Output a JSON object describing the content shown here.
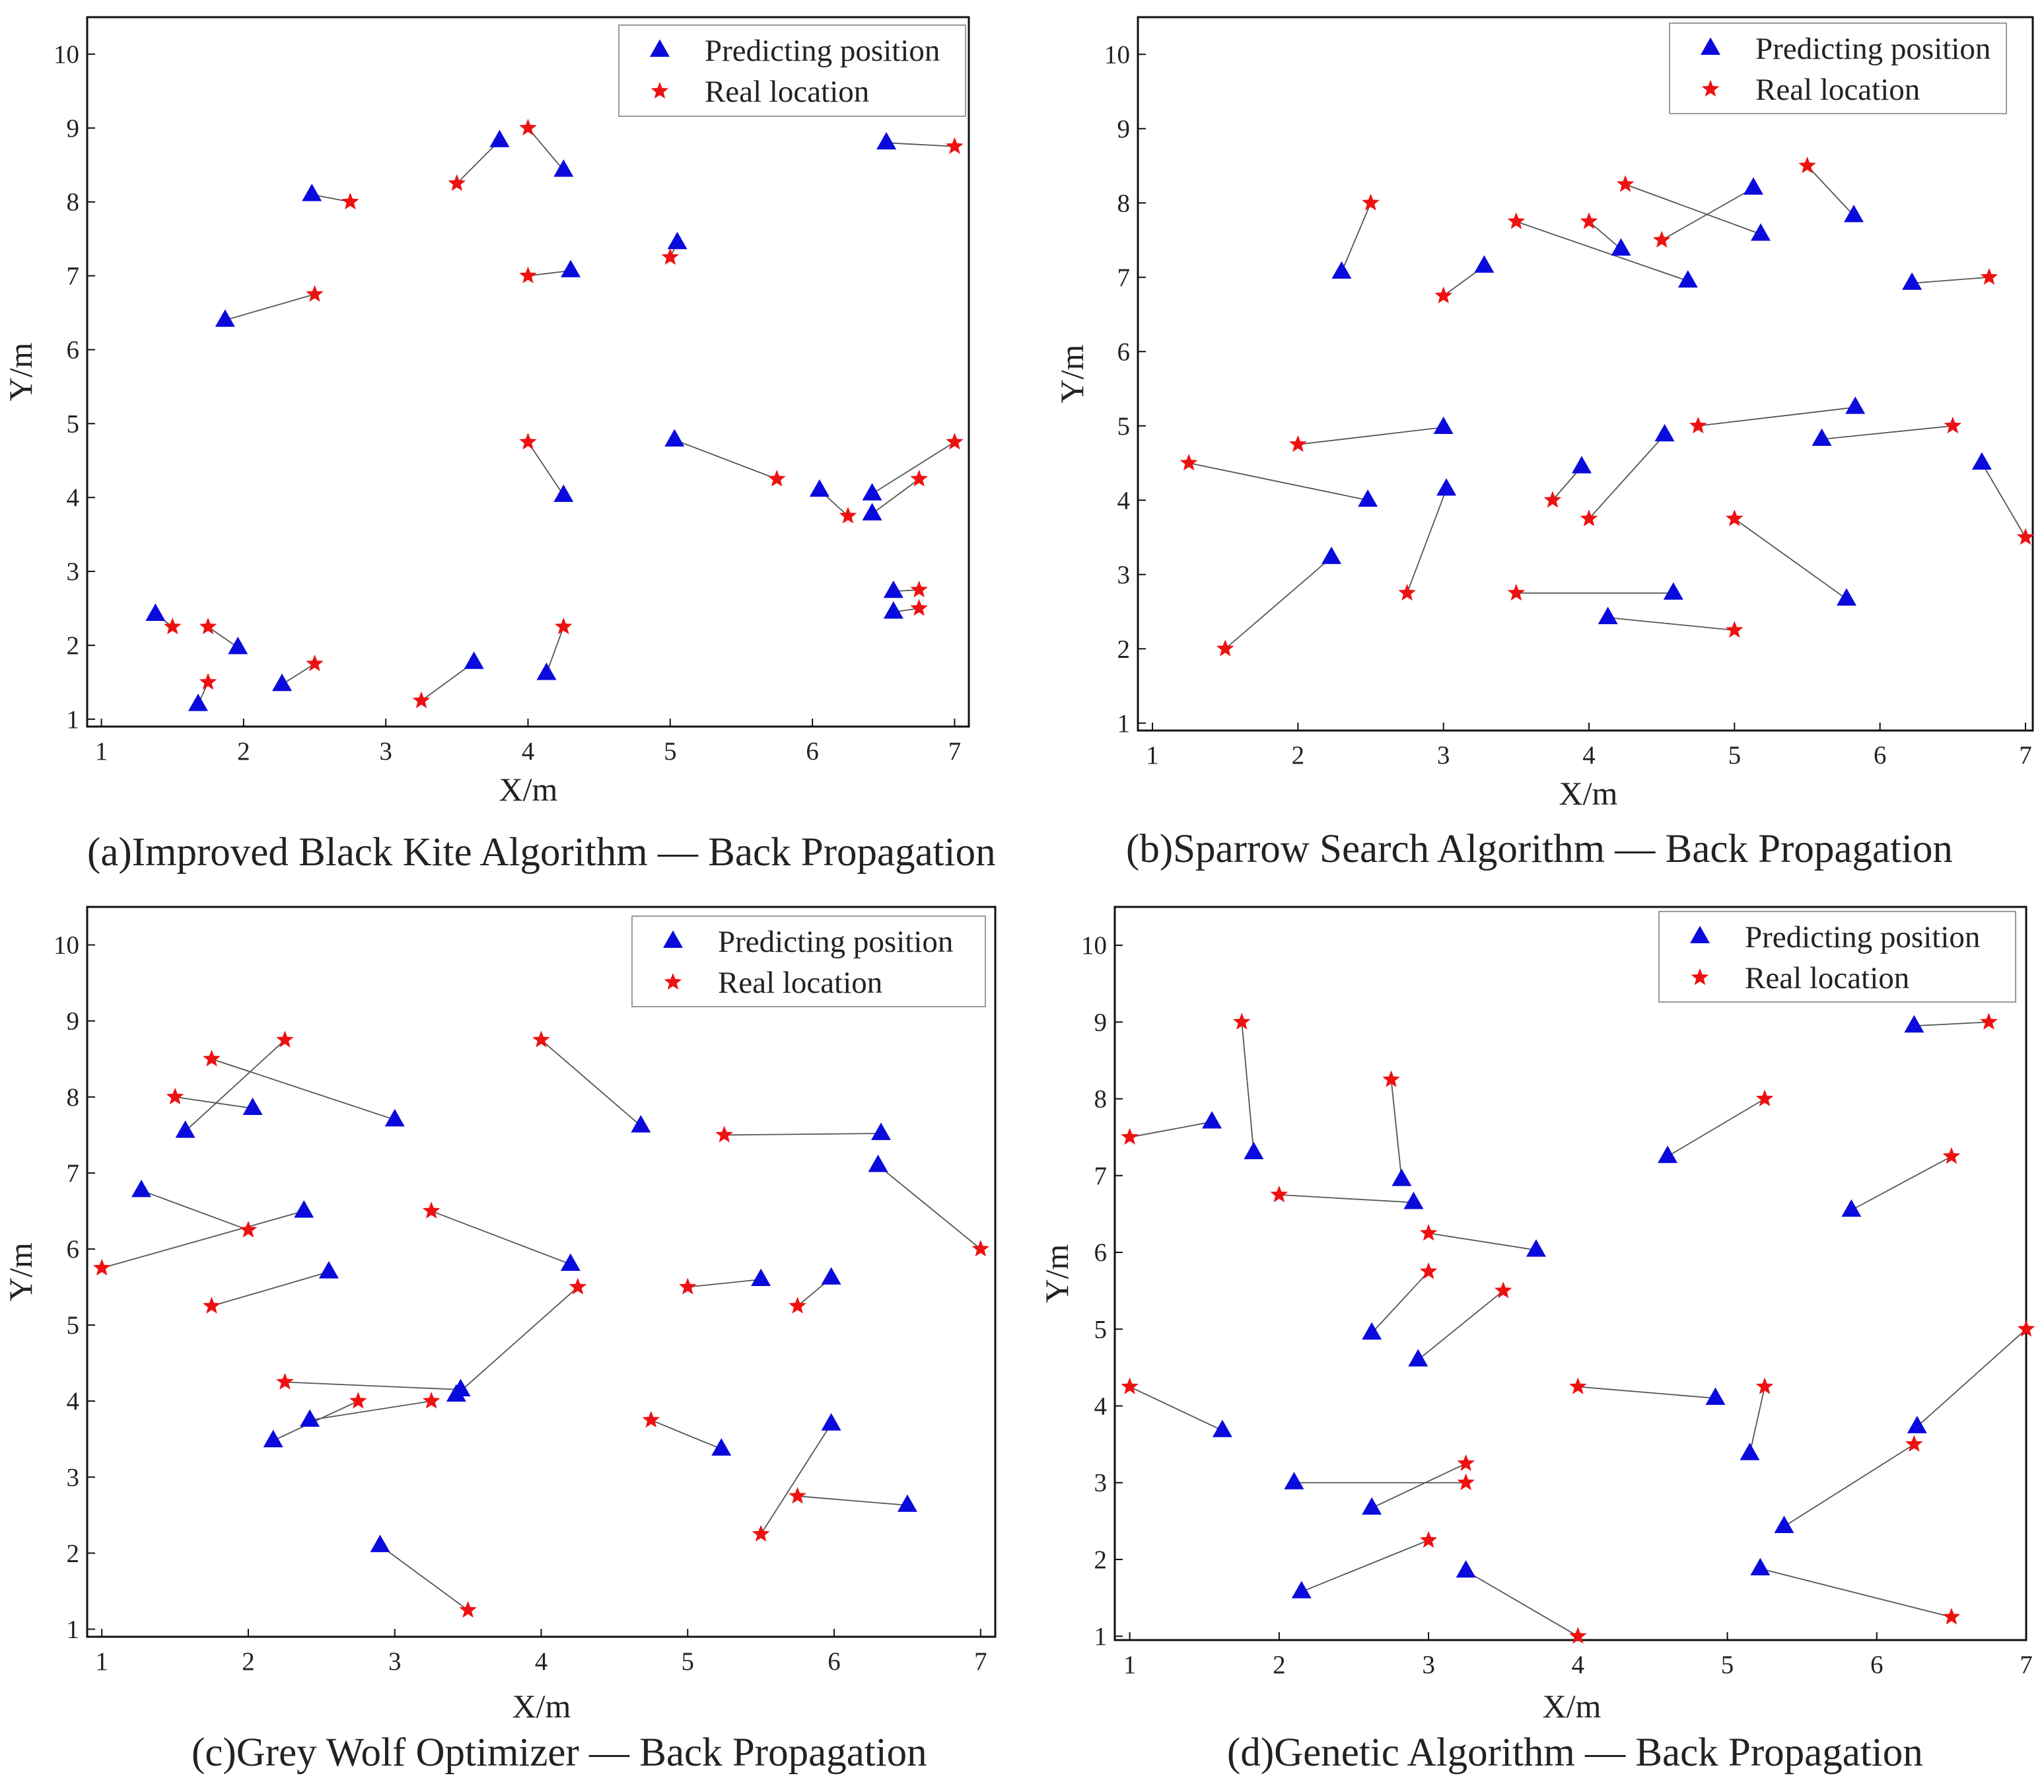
{
  "colors": {
    "predicted": "#0a0adc",
    "real": "#ee1111",
    "link": "#555555",
    "axis": "#111111",
    "legend_border": "#9a9a9a"
  },
  "legend": {
    "predicted_label": "Predicting position",
    "real_label": "Real location"
  },
  "chart_data": [
    {
      "type": "scatter",
      "caption": "(a)Improved Black Kite Algorithm — Back Propagation",
      "xlabel": "X/m",
      "ylabel": "Y/m",
      "xlim": [
        0.9,
        7.1
      ],
      "ylim": [
        0.9,
        10.5
      ],
      "xticks": [
        1,
        2,
        3,
        4,
        5,
        6,
        7
      ],
      "yticks": [
        1,
        2,
        3,
        4,
        5,
        6,
        7,
        8,
        9,
        10
      ],
      "legend_position": "top-right",
      "pairs": [
        {
          "pred": [
            1.68,
            1.2
          ],
          "real": [
            1.75,
            1.5
          ]
        },
        {
          "pred": [
            1.38,
            2.42
          ],
          "real": [
            1.5,
            2.25
          ]
        },
        {
          "pred": [
            1.96,
            1.97
          ],
          "real": [
            1.75,
            2.25
          ]
        },
        {
          "pred": [
            2.27,
            1.47
          ],
          "real": [
            2.5,
            1.75
          ]
        },
        {
          "pred": [
            3.62,
            1.77
          ],
          "real": [
            3.25,
            1.25
          ]
        },
        {
          "pred": [
            4.13,
            1.62
          ],
          "real": [
            4.25,
            2.25
          ]
        },
        {
          "pred": [
            1.87,
            6.4
          ],
          "real": [
            2.5,
            6.75
          ]
        },
        {
          "pred": [
            2.48,
            8.1
          ],
          "real": [
            2.75,
            8.0
          ]
        },
        {
          "pred": [
            3.8,
            8.83
          ],
          "real": [
            3.5,
            8.25
          ]
        },
        {
          "pred": [
            4.25,
            8.43
          ],
          "real": [
            4.0,
            9.0
          ]
        },
        {
          "pred": [
            4.3,
            7.07
          ],
          "real": [
            4.0,
            7.0
          ]
        },
        {
          "pred": [
            5.05,
            7.45
          ],
          "real": [
            5.0,
            7.25
          ]
        },
        {
          "pred": [
            6.52,
            8.8
          ],
          "real": [
            7.0,
            8.75
          ]
        },
        {
          "pred": [
            4.25,
            4.03
          ],
          "real": [
            4.0,
            4.75
          ]
        },
        {
          "pred": [
            5.03,
            4.78
          ],
          "real": [
            5.75,
            4.25
          ]
        },
        {
          "pred": [
            6.05,
            4.1
          ],
          "real": [
            6.25,
            3.75
          ]
        },
        {
          "pred": [
            6.42,
            4.05
          ],
          "real": [
            7.0,
            4.75
          ]
        },
        {
          "pred": [
            6.42,
            3.78
          ],
          "real": [
            6.75,
            4.25
          ]
        },
        {
          "pred": [
            6.57,
            2.73
          ],
          "real": [
            6.75,
            2.75
          ]
        },
        {
          "pred": [
            6.57,
            2.45
          ],
          "real": [
            6.75,
            2.5
          ]
        }
      ]
    },
    {
      "type": "scatter",
      "caption": "(b)Sparrow Search Algorithm — Back Propagation",
      "xlabel": "X/m",
      "ylabel": "Y/m",
      "xlim": [
        0.9,
        7.05
      ],
      "ylim": [
        0.9,
        10.5
      ],
      "xticks": [
        1,
        2,
        3,
        4,
        5,
        6,
        7
      ],
      "yticks": [
        1,
        2,
        3,
        4,
        5,
        6,
        7,
        8,
        9,
        10
      ],
      "legend_position": "top-right",
      "pairs": [
        {
          "pred": [
            2.3,
            7.07
          ],
          "real": [
            2.5,
            8.0
          ]
        },
        {
          "pred": [
            3.28,
            7.15
          ],
          "real": [
            3.0,
            6.75
          ]
        },
        {
          "pred": [
            4.22,
            7.38
          ],
          "real": [
            4.0,
            7.75
          ]
        },
        {
          "pred": [
            4.68,
            6.95
          ],
          "real": [
            3.5,
            7.75
          ]
        },
        {
          "pred": [
            5.18,
            7.58
          ],
          "real": [
            4.25,
            8.25
          ]
        },
        {
          "pred": [
            5.13,
            8.2
          ],
          "real": [
            4.5,
            7.5
          ]
        },
        {
          "pred": [
            5.82,
            7.83
          ],
          "real": [
            5.5,
            8.5
          ]
        },
        {
          "pred": [
            6.22,
            6.92
          ],
          "real": [
            6.75,
            7.0
          ]
        },
        {
          "pred": [
            3.0,
            4.98
          ],
          "real": [
            2.0,
            4.75
          ]
        },
        {
          "pred": [
            2.48,
            4.0
          ],
          "real": [
            1.25,
            4.5
          ]
        },
        {
          "pred": [
            3.02,
            4.15
          ],
          "real": [
            2.75,
            2.75
          ]
        },
        {
          "pred": [
            2.23,
            3.23
          ],
          "real": [
            1.5,
            2.0
          ]
        },
        {
          "pred": [
            3.95,
            4.45
          ],
          "real": [
            3.75,
            4.0
          ]
        },
        {
          "pred": [
            4.52,
            4.88
          ],
          "real": [
            4.0,
            3.75
          ]
        },
        {
          "pred": [
            5.83,
            5.25
          ],
          "real": [
            4.75,
            5.0
          ]
        },
        {
          "pred": [
            5.6,
            4.82
          ],
          "real": [
            6.5,
            5.0
          ]
        },
        {
          "pred": [
            6.7,
            4.5
          ],
          "real": [
            7.0,
            3.5
          ]
        },
        {
          "pred": [
            5.77,
            2.67
          ],
          "real": [
            5.0,
            3.75
          ]
        },
        {
          "pred": [
            4.58,
            2.75
          ],
          "real": [
            3.5,
            2.75
          ]
        },
        {
          "pred": [
            4.13,
            2.42
          ],
          "real": [
            5.0,
            2.25
          ]
        }
      ]
    },
    {
      "type": "scatter",
      "caption": "(c)Grey Wolf Optimizer — Back Propagation",
      "xlabel": "X/m",
      "ylabel": "Y/m",
      "xlim": [
        0.9,
        7.1
      ],
      "ylim": [
        0.9,
        10.5
      ],
      "xticks": [
        1,
        2,
        3,
        4,
        5,
        6,
        7
      ],
      "yticks": [
        1,
        2,
        3,
        4,
        5,
        6,
        7,
        8,
        9,
        10
      ],
      "legend_position": "top-right",
      "pairs": [
        {
          "pred": [
            1.57,
            7.55
          ],
          "real": [
            2.25,
            8.75
          ]
        },
        {
          "pred": [
            2.03,
            7.85
          ],
          "real": [
            1.5,
            8.0
          ]
        },
        {
          "pred": [
            3.0,
            7.7
          ],
          "real": [
            1.75,
            8.5
          ]
        },
        {
          "pred": [
            1.27,
            6.77
          ],
          "real": [
            2.0,
            6.25
          ]
        },
        {
          "pred": [
            2.38,
            6.5
          ],
          "real": [
            1.0,
            5.75
          ]
        },
        {
          "pred": [
            2.55,
            5.7
          ],
          "real": [
            1.75,
            5.25
          ]
        },
        {
          "pred": [
            4.68,
            7.62
          ],
          "real": [
            4.0,
            8.75
          ]
        },
        {
          "pred": [
            6.32,
            7.52
          ],
          "real": [
            5.25,
            7.5
          ]
        },
        {
          "pred": [
            6.3,
            7.1
          ],
          "real": [
            7.0,
            6.0
          ]
        },
        {
          "pred": [
            4.2,
            5.8
          ],
          "real": [
            3.25,
            6.5
          ]
        },
        {
          "pred": [
            3.45,
            4.15
          ],
          "real": [
            2.25,
            4.25
          ]
        },
        {
          "pred": [
            3.42,
            4.08
          ],
          "real": [
            4.25,
            5.5
          ]
        },
        {
          "pred": [
            2.42,
            3.75
          ],
          "real": [
            3.25,
            4.0
          ]
        },
        {
          "pred": [
            2.17,
            3.48
          ],
          "real": [
            2.75,
            4.0
          ]
        },
        {
          "pred": [
            5.5,
            5.6
          ],
          "real": [
            5.0,
            5.5
          ]
        },
        {
          "pred": [
            5.98,
            5.62
          ],
          "real": [
            5.75,
            5.25
          ]
        },
        {
          "pred": [
            5.23,
            3.37
          ],
          "real": [
            4.75,
            3.75
          ]
        },
        {
          "pred": [
            5.98,
            3.7
          ],
          "real": [
            5.5,
            2.25
          ]
        },
        {
          "pred": [
            6.5,
            2.63
          ],
          "real": [
            5.75,
            2.75
          ]
        },
        {
          "pred": [
            2.9,
            2.1
          ],
          "real": [
            3.5,
            1.25
          ]
        }
      ]
    },
    {
      "type": "scatter",
      "caption": "(d)Genetic Algorithm — Back Propagation",
      "xlabel": "X/m",
      "ylabel": "Y/m",
      "xlim": [
        0.9,
        7.0
      ],
      "ylim": [
        0.95,
        10.5
      ],
      "xticks": [
        1,
        2,
        3,
        4,
        5,
        6,
        7
      ],
      "yticks": [
        1,
        2,
        3,
        4,
        5,
        6,
        7,
        8,
        9,
        10
      ],
      "legend_position": "top-right",
      "pairs": [
        {
          "pred": [
            1.55,
            7.7
          ],
          "real": [
            1.0,
            7.5
          ]
        },
        {
          "pred": [
            1.83,
            7.3
          ],
          "real": [
            1.75,
            9.0
          ]
        },
        {
          "pred": [
            2.82,
            6.95
          ],
          "real": [
            2.75,
            8.25
          ]
        },
        {
          "pred": [
            2.9,
            6.65
          ],
          "real": [
            2.0,
            6.75
          ]
        },
        {
          "pred": [
            3.72,
            6.03
          ],
          "real": [
            3.0,
            6.25
          ]
        },
        {
          "pred": [
            2.62,
            4.95
          ],
          "real": [
            3.0,
            5.75
          ]
        },
        {
          "pred": [
            2.93,
            4.6
          ],
          "real": [
            3.5,
            5.5
          ]
        },
        {
          "pred": [
            4.6,
            7.25
          ],
          "real": [
            5.25,
            8.0
          ]
        },
        {
          "pred": [
            6.25,
            8.95
          ],
          "real": [
            6.75,
            9.0
          ]
        },
        {
          "pred": [
            5.83,
            6.55
          ],
          "real": [
            6.5,
            7.25
          ]
        },
        {
          "pred": [
            1.62,
            3.68
          ],
          "real": [
            1.0,
            4.25
          ]
        },
        {
          "pred": [
            2.1,
            3.0
          ],
          "real": [
            3.25,
            3.0
          ]
        },
        {
          "pred": [
            2.62,
            2.67
          ],
          "real": [
            3.25,
            3.25
          ]
        },
        {
          "pred": [
            2.15,
            1.58
          ],
          "real": [
            3.0,
            2.25
          ]
        },
        {
          "pred": [
            3.25,
            1.85
          ],
          "real": [
            4.0,
            1.0
          ]
        },
        {
          "pred": [
            4.92,
            4.1
          ],
          "real": [
            4.0,
            4.25
          ]
        },
        {
          "pred": [
            5.15,
            3.38
          ],
          "real": [
            5.25,
            4.25
          ]
        },
        {
          "pred": [
            5.38,
            2.43
          ],
          "real": [
            6.25,
            3.5
          ]
        },
        {
          "pred": [
            6.27,
            3.73
          ],
          "real": [
            7.0,
            5.0
          ]
        },
        {
          "pred": [
            5.22,
            1.88
          ],
          "real": [
            6.5,
            1.25
          ]
        }
      ]
    }
  ]
}
